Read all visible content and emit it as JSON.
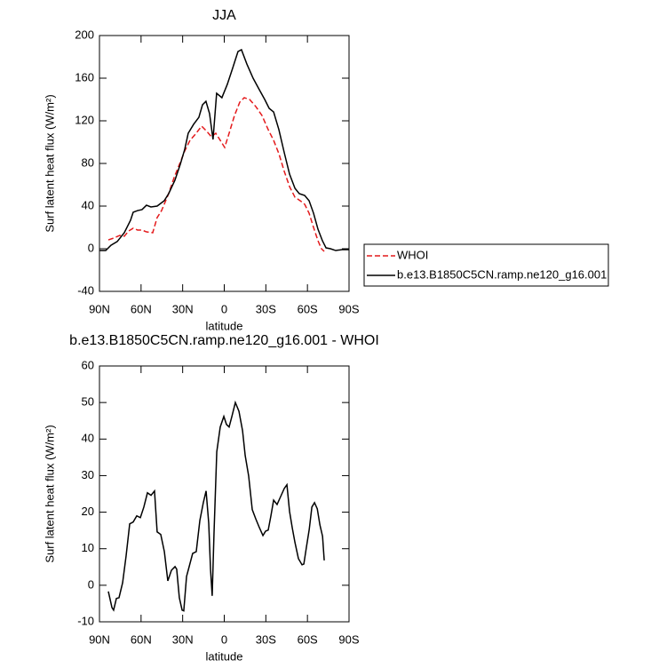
{
  "chart_data": [
    {
      "type": "line",
      "title": "JJA",
      "x_label": "latitude",
      "y_label": "Surf latent heat flux (W/m²)",
      "xlim": [
        90,
        -90
      ],
      "xticks": [
        {
          "value": 90,
          "label": "90N"
        },
        {
          "value": 60,
          "label": "60N"
        },
        {
          "value": 30,
          "label": "30N"
        },
        0,
        {
          "value": -30,
          "label": "30S"
        },
        {
          "value": -60,
          "label": "60S"
        },
        {
          "value": -90,
          "label": "90S"
        }
      ],
      "ylim": [
        -40,
        200
      ],
      "yticks": [
        -40,
        0,
        40,
        80,
        120,
        160,
        200
      ],
      "legend": "right",
      "series": [
        {
          "name": "WHOI",
          "color": "#e41a1c",
          "dash": true,
          "x": [
            83.6,
            79.7,
            75.3,
            72.1,
            68.9,
            65.7,
            62.5,
            59.3,
            56.1,
            51.6,
            48.4,
            45.2,
            40.1,
            36.2,
            32.3,
            28.5,
            24.7,
            20.8,
            16.3,
            12.5,
            9.3,
            6.1,
            2.9,
            -0.3,
            -3.5,
            -7.4,
            -11.2,
            -14.4,
            -18.3,
            -22.8,
            -27.2,
            -31.7,
            -35.6,
            -39.4,
            -43.3,
            -47.1,
            -51,
            -54.8,
            -58,
            -61.2,
            -64.4,
            -67.6,
            -70.1,
            -72.1
          ],
          "values": [
            8.3,
            10,
            12.5,
            11.7,
            16.7,
            19.2,
            17.5,
            17.5,
            15.8,
            15,
            29.2,
            35.8,
            51.7,
            66.7,
            79.2,
            91.7,
            101.7,
            107.5,
            115,
            110,
            105,
            108.3,
            101.7,
            95,
            108.3,
            125,
            137.5,
            141.7,
            140,
            133.3,
            125,
            111.7,
            101.7,
            89.2,
            72.5,
            58.3,
            48.3,
            45,
            41.7,
            33.3,
            20,
            7.5,
            0,
            -2.5
          ]
        },
        {
          "name": "b.e13.B1850C5CN.ramp.ne120_g16.001",
          "color": "#000000",
          "dash": false,
          "x": [
            90,
            85.5,
            81.7,
            77.2,
            72.1,
            67.6,
            65.7,
            62.5,
            59.3,
            56.1,
            52.9,
            48.4,
            43.3,
            40.1,
            35.6,
            31.7,
            28.5,
            26,
            22.1,
            18.3,
            15.7,
            13.2,
            10.6,
            8.1,
            5.5,
            1.7,
            -2.2,
            -6,
            -9.9,
            -12.4,
            -16.3,
            -20.8,
            -25.3,
            -29.2,
            -32.4,
            -35.6,
            -39.4,
            -43.3,
            -47.1,
            -51,
            -54.1,
            -58,
            -61.2,
            -64.4,
            -67.6,
            -70.8,
            -73.4,
            -76.6,
            -80.4,
            -84.9,
            -90
          ],
          "values": [
            -1.7,
            -1.7,
            3.3,
            6.7,
            15,
            26.7,
            34.2,
            35.8,
            36.7,
            40.8,
            39.2,
            40,
            45,
            51.7,
            64.2,
            79.2,
            93.3,
            108.3,
            116.7,
            123.3,
            135,
            138.3,
            126.7,
            102.5,
            145.8,
            141.7,
            154.2,
            169.2,
            185,
            186.7,
            173.3,
            160,
            149.2,
            140,
            131.7,
            128.3,
            111.7,
            90,
            70,
            56.7,
            51.7,
            50,
            45,
            33.3,
            18.3,
            7.5,
            0.8,
            0,
            -1.7,
            -0.8,
            -0.8
          ]
        }
      ]
    },
    {
      "type": "line",
      "title": "b.e13.B1850C5CN.ramp.ne120_g16.001 - WHOI",
      "x_label": "latitude",
      "y_label": "Surf latent heat flux (W/m²)",
      "xlim": [
        90,
        -90
      ],
      "xticks": [
        {
          "value": 90,
          "label": "90N"
        },
        {
          "value": 60,
          "label": "60N"
        },
        {
          "value": 30,
          "label": "30N"
        },
        0,
        {
          "value": -30,
          "label": "30S"
        },
        {
          "value": -60,
          "label": "60S"
        },
        {
          "value": -90,
          "label": "90S"
        }
      ],
      "ylim": [
        -10,
        60
      ],
      "yticks": [
        -10,
        0,
        10,
        20,
        30,
        40,
        50,
        60
      ],
      "series": [
        {
          "color": "#000000",
          "dash": false,
          "x": [
            83.6,
            81,
            79.8,
            77.8,
            75.9,
            73.3,
            70.8,
            68.2,
            65.7,
            63.1,
            60.5,
            58,
            55.4,
            52.8,
            50.3,
            48.4,
            45.8,
            43.2,
            40.7,
            38.1,
            35.5,
            34.3,
            32.4,
            30.4,
            29.2,
            27.2,
            25.3,
            22.8,
            20.2,
            17.6,
            15.1,
            13.1,
            11.2,
            9.9,
            8.7,
            7.4,
            5.4,
            2.9,
            0.3,
            -1.6,
            -3.5,
            -5.5,
            -8,
            -10.6,
            -13.2,
            -15.1,
            -17.6,
            -20.2,
            -22.7,
            -25.3,
            -27.9,
            -29.8,
            -31.7,
            -33.6,
            -35.6,
            -38.1,
            -40.7,
            -43.3,
            -45.2,
            -47.1,
            -49.1,
            -51,
            -53.5,
            -56.1,
            -57.4,
            -59.3,
            -61.3,
            -63.2,
            -65.1,
            -67.1,
            -69,
            -70.9,
            -72.1
          ],
          "values": [
            -1.7,
            -6.1,
            -6.8,
            -3.6,
            -3.4,
            0.7,
            8,
            16.8,
            17.3,
            19,
            18.5,
            21.4,
            25.3,
            24.6,
            25.8,
            14.6,
            13.9,
            9.2,
            1.2,
            4.1,
            5.1,
            4.4,
            -3.4,
            -6.8,
            -7,
            2.4,
            5.1,
            8.7,
            9.2,
            17.7,
            22.6,
            25.8,
            17,
            4.4,
            -2.9,
            14.1,
            36.5,
            43.3,
            46.2,
            44,
            43.3,
            46.2,
            50,
            47.6,
            42.3,
            35.5,
            29.9,
            20.7,
            18.2,
            15.8,
            13.6,
            14.8,
            15.1,
            18.9,
            23.3,
            22.1,
            24.3,
            26.5,
            27.5,
            20.2,
            15.6,
            11.7,
            7.3,
            5.6,
            5.8,
            10.5,
            15.3,
            21.4,
            22.6,
            20.9,
            16.5,
            13.4,
            6.8
          ]
        }
      ]
    }
  ]
}
